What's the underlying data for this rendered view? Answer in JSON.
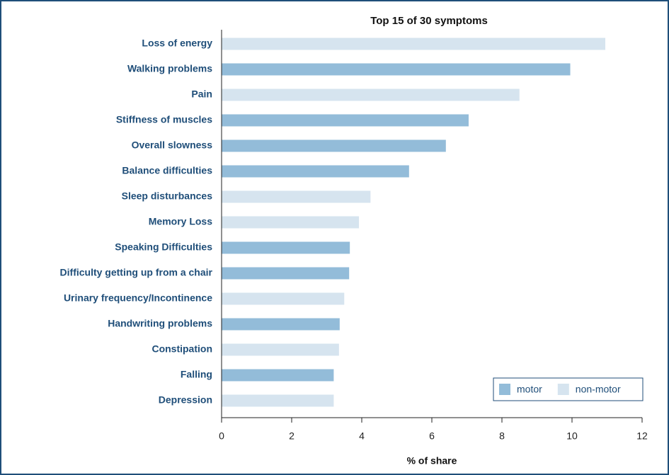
{
  "chart_data": {
    "type": "barh",
    "title": "Top 15 of 30 symptoms",
    "xlabel": "% of share",
    "categories": [
      "Loss of energy",
      "Walking problems",
      "Pain",
      "Stiffness of muscles",
      "Overall slowness",
      "Balance difficulties",
      "Sleep disturbances",
      "Memory Loss",
      "Speaking Difficulties",
      "Difficulty getting up from a chair",
      "Urinary frequency/Incontinence",
      "Handwriting problems",
      "Constipation",
      "Falling",
      "Depression"
    ],
    "series": [
      {
        "name": "motor",
        "color": "#93bcd9",
        "values": [
          null,
          9.95,
          null,
          7.05,
          6.4,
          5.35,
          null,
          null,
          3.66,
          3.64,
          null,
          3.37,
          null,
          3.2,
          null
        ]
      },
      {
        "name": "non-motor",
        "color": "#d6e4ef",
        "values": [
          10.95,
          null,
          8.5,
          null,
          null,
          null,
          4.25,
          3.92,
          null,
          null,
          3.5,
          null,
          3.35,
          null,
          3.2
        ]
      }
    ],
    "xlim": [
      0,
      12
    ],
    "xticks": [
      0,
      2,
      4,
      6,
      8,
      10,
      12
    ],
    "legend": "lower right"
  }
}
